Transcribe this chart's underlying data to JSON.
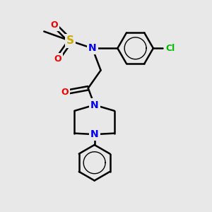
{
  "bg_color": "#e8e8e8",
  "atom_colors": {
    "C": "#000000",
    "N": "#0000ee",
    "O": "#ee0000",
    "S": "#ccaa00",
    "Cl": "#00bb00",
    "H": "#000000"
  },
  "bond_color": "#000000",
  "bond_width": 1.8,
  "figsize": [
    3.0,
    3.0
  ],
  "dpi": 100
}
